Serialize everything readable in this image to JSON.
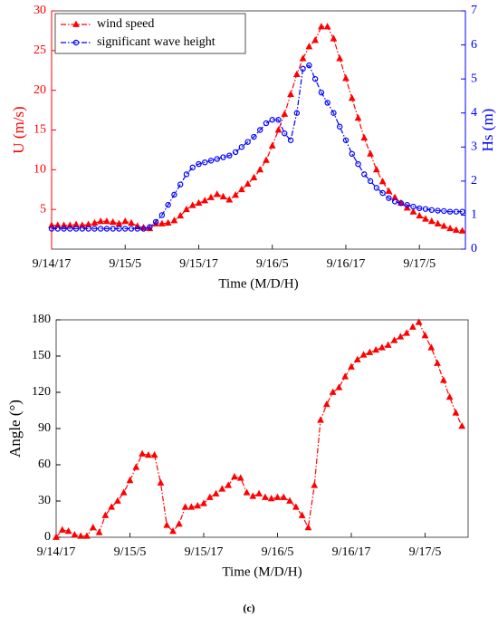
{
  "chart_data": [
    {
      "type": "line",
      "xlabel": "Time (M/D/H)",
      "ylabel": "U (m/s)",
      "y2label": "Hs (m)",
      "xlim": [
        0,
        67.5
      ],
      "xticks": [
        {
          "value": 0,
          "label": "9/14/17"
        },
        {
          "value": 12,
          "label": "9/15/5"
        },
        {
          "value": 24,
          "label": "9/15/17"
        },
        {
          "value": 36,
          "label": "9/16/5"
        },
        {
          "value": 48,
          "label": "9/16/17"
        },
        {
          "value": 60,
          "label": "9/17/5"
        }
      ],
      "ylim": [
        0,
        30
      ],
      "yticks": [
        5,
        10,
        15,
        20,
        25,
        30
      ],
      "y2lim": [
        0,
        7
      ],
      "y2ticks": [
        0,
        1,
        2,
        3,
        4,
        5,
        6,
        7
      ],
      "legend": "upper left",
      "x": [
        0,
        1,
        2,
        3,
        4,
        5,
        6,
        7,
        8,
        9,
        10,
        11,
        12,
        13,
        14,
        15,
        16,
        17,
        18,
        19,
        20,
        21,
        22,
        23,
        24,
        25,
        26,
        27,
        28,
        29,
        30,
        31,
        32,
        33,
        34,
        35,
        36,
        37,
        38,
        39,
        40,
        41,
        42,
        43,
        44,
        45,
        46,
        47,
        48,
        49,
        50,
        51,
        52,
        53,
        54,
        55,
        56,
        57,
        58,
        59,
        60,
        61,
        62,
        63,
        64,
        65,
        66,
        67
      ],
      "series": [
        {
          "name": "wind speed",
          "color": "#ff0000",
          "marker": "triangle",
          "values": [
            3.0,
            3.0,
            3.0,
            3.0,
            3.1,
            3.0,
            3.1,
            3.3,
            3.5,
            3.5,
            3.4,
            3.2,
            3.5,
            3.3,
            2.9,
            2.7,
            2.6,
            3.2,
            3.2,
            3.3,
            3.6,
            4.2,
            5.0,
            5.5,
            5.8,
            6.1,
            6.5,
            6.9,
            6.6,
            6.2,
            6.8,
            7.5,
            8.2,
            9.0,
            10.0,
            11.2,
            13.0,
            15.0,
            17.0,
            19.5,
            22.0,
            24.0,
            25.5,
            26.3,
            28.0,
            28.0,
            26.5,
            24.0,
            21.5,
            19.0,
            16.5,
            14.0,
            12.0,
            10.0,
            8.5,
            7.3,
            6.5,
            5.8,
            5.2,
            4.7,
            4.2,
            3.8,
            3.5,
            3.2,
            2.9,
            2.6,
            2.4,
            2.3
          ]
        },
        {
          "name": "significant wave height",
          "color": "#0000ff",
          "marker": "circle",
          "axis": "y2",
          "values": [
            0.6,
            0.6,
            0.6,
            0.6,
            0.6,
            0.6,
            0.6,
            0.6,
            0.6,
            0.6,
            0.6,
            0.6,
            0.6,
            0.6,
            0.6,
            0.6,
            0.65,
            0.8,
            1.0,
            1.3,
            1.6,
            1.9,
            2.2,
            2.4,
            2.5,
            2.55,
            2.6,
            2.65,
            2.7,
            2.75,
            2.85,
            3.0,
            3.15,
            3.3,
            3.5,
            3.7,
            3.8,
            3.8,
            3.4,
            3.2,
            4.0,
            5.3,
            5.4,
            5.0,
            4.6,
            4.3,
            4.0,
            3.6,
            3.2,
            2.8,
            2.5,
            2.2,
            2.0,
            1.8,
            1.65,
            1.5,
            1.4,
            1.35,
            1.3,
            1.25,
            1.2,
            1.18,
            1.15,
            1.13,
            1.12,
            1.1,
            1.1,
            1.1
          ]
        }
      ]
    },
    {
      "type": "line",
      "xlabel": "Time (M/D/H)",
      "ylabel": "Angle (°)",
      "xlim": [
        0,
        67
      ],
      "xticks": [
        {
          "value": 0,
          "label": "9/14/17"
        },
        {
          "value": 12,
          "label": "9/15/5"
        },
        {
          "value": 24,
          "label": "9/15/17"
        },
        {
          "value": 36,
          "label": "9/16/5"
        },
        {
          "value": 48,
          "label": "9/16/17"
        },
        {
          "value": 60,
          "label": "9/17/5"
        }
      ],
      "ylim": [
        0,
        180
      ],
      "yticks": [
        0,
        30,
        60,
        90,
        120,
        150,
        180
      ],
      "x": [
        0,
        1,
        2,
        3,
        4,
        5,
        6,
        7,
        8,
        9,
        10,
        11,
        12,
        13,
        14,
        15,
        16,
        17,
        18,
        19,
        20,
        21,
        22,
        23,
        24,
        25,
        26,
        27,
        28,
        29,
        30,
        31,
        32,
        33,
        34,
        35,
        36,
        37,
        38,
        39,
        40,
        41,
        42,
        43,
        44,
        45,
        46,
        47,
        48,
        49,
        50,
        51,
        52,
        53,
        54,
        55,
        56,
        57,
        58,
        59,
        60,
        61,
        62,
        63,
        64,
        65,
        66
      ],
      "series": [
        {
          "color": "#ff0000",
          "marker": "triangle",
          "values": [
            0,
            6,
            5,
            2,
            1,
            1,
            8,
            4,
            18,
            25,
            30,
            37,
            47,
            58,
            69,
            68,
            68,
            45,
            10,
            5,
            11,
            25,
            25,
            26,
            28,
            33,
            36,
            40,
            43,
            50,
            49,
            37,
            34,
            36,
            33,
            32,
            33,
            33,
            30,
            25,
            18,
            8,
            43,
            97,
            110,
            120,
            124,
            133,
            141,
            147,
            151,
            153,
            155,
            157,
            159,
            163,
            166,
            169,
            174,
            178,
            167,
            157,
            144,
            130,
            116,
            103,
            92
          ]
        }
      ]
    }
  ],
  "caption": "(c)"
}
